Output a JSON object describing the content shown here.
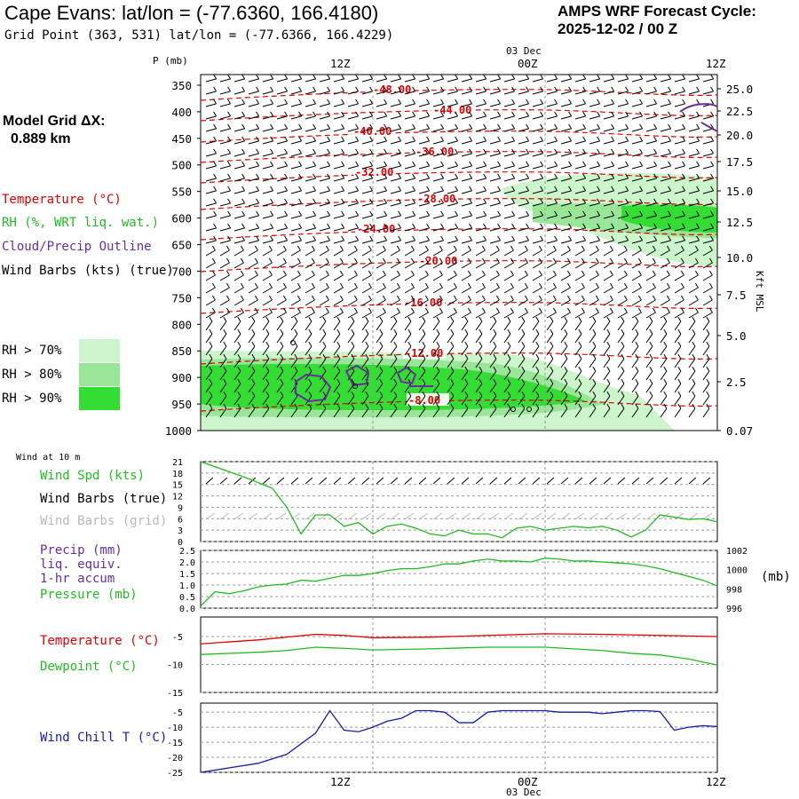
{
  "header": {
    "title": "Cape Evans:  lat/lon = (-77.6360, 166.4180)",
    "subtitle": "Grid Point (363, 531) lat/lon = (-77.6366, 166.4229)",
    "cycle_line1": "AMPS WRF Forecast Cycle:",
    "cycle_line2": "2025-12-02 / 00  Z"
  },
  "model_grid": {
    "label": "Model Grid ΔX:",
    "value": "0.889 km"
  },
  "legend": {
    "temperature": "Temperature (°C)",
    "rh": "RH (%, WRT liq. wat.)",
    "cloud": "Cloud/Precip Outline",
    "wind": "Wind Barbs (kts) (true)",
    "rh70": "RH > 70%",
    "rh80": "RH > 80%",
    "rh90": "RH > 90%"
  },
  "colors": {
    "temp": "#e00000",
    "rh": "#22bb22",
    "cloud": "#6a2d9c",
    "wind": "#000000",
    "rh70": "#ccf5cc",
    "rh80": "#99e699",
    "rh90": "#33dd33",
    "grid_barbs": "#b8b8b8",
    "chill": "#1a1aaa",
    "gridline": "#999999"
  },
  "time_axis": {
    "ticks": [
      "12Z",
      "00Z",
      "12Z"
    ],
    "date_top": "03 Dec",
    "date_bottom": "03 Dec"
  },
  "upper_panel": {
    "pressure_title": "P (mb)",
    "pressure_ticks": [
      "350",
      "400",
      "450",
      "500",
      "550",
      "600",
      "650",
      "700",
      "750",
      "800",
      "850",
      "900",
      "950",
      "1000"
    ],
    "height_ticks": [
      "25.0",
      "22.5",
      "20.0",
      "17.5",
      "15.0",
      "12.5",
      "10.0",
      "7.5",
      "5.0",
      "2.5",
      "0.07"
    ],
    "height_title": "Kft MSL",
    "temp_contour_labels": [
      "-48.00",
      "-44.00",
      "-40.00",
      "-36.00",
      "-32.00",
      "-28.00",
      "-24.00",
      "-20.00",
      "-16.00",
      "-12.00",
      "-8.00"
    ]
  },
  "wind_panel": {
    "title": "Wind at 10 m",
    "speed_label": "Wind Spd (kts)",
    "barbs_true_label": "Wind Barbs (true)",
    "barbs_grid_label": "Wind Barbs (grid)",
    "y_ticks": [
      "21",
      "18",
      "15",
      "12",
      "9",
      "6",
      "3",
      "0"
    ]
  },
  "precip_panel": {
    "precip_label": "Precip (mm)",
    "liq_label": "liq. equiv.",
    "accum_label": "1-hr accum",
    "pressure_label": "Pressure (mb)",
    "left_ticks": [
      "2.5",
      "2.0",
      "1.5",
      "1.0",
      "0.5",
      "0.0"
    ],
    "right_ticks": [
      "1002",
      "1000",
      "998",
      "996"
    ],
    "right_unit": "(mb)"
  },
  "temp_panel": {
    "temp_label": "Temperature (°C)",
    "dew_label": "Dewpoint (°C)",
    "y_ticks": [
      "-5",
      "-10",
      "-15"
    ]
  },
  "chill_panel": {
    "label": "Wind Chill T (°C)",
    "y_ticks": [
      "-5",
      "-10",
      "-15",
      "-20",
      "-25"
    ]
  },
  "chart_data": {
    "type": "line",
    "x_hours": [
      0,
      1,
      2,
      3,
      4,
      5,
      6,
      7,
      8,
      9,
      10,
      11,
      12,
      13,
      14,
      15,
      16,
      17,
      18,
      19,
      20,
      21,
      22,
      23,
      24,
      25,
      26,
      27,
      28,
      29,
      30,
      31,
      32,
      33,
      34,
      35,
      36
    ],
    "wind_speed_kts": {
      "x": [
        0,
        3,
        5,
        6,
        7,
        8,
        9,
        10,
        11,
        12,
        13,
        14,
        15,
        16,
        17,
        18,
        19,
        20,
        21,
        22,
        23,
        24,
        25,
        26,
        27,
        28,
        29,
        30,
        31,
        32,
        33,
        34,
        35,
        36
      ],
      "values": [
        21,
        17,
        14,
        9,
        2,
        7,
        7,
        4,
        5,
        2,
        4,
        4.6,
        3.5,
        2,
        1.5,
        3,
        2,
        2,
        1,
        3.5,
        4,
        3,
        3.5,
        4,
        3.6,
        4,
        3,
        1.2,
        3,
        7,
        6.4,
        5.8,
        6,
        5.2
      ],
      "ylim": [
        0,
        21
      ]
    },
    "pressure_mb": {
      "x": [
        0,
        1,
        2,
        3,
        4,
        5,
        6,
        7,
        8,
        9,
        10,
        11,
        12,
        13,
        14,
        15,
        16,
        17,
        18,
        19,
        20,
        21,
        22,
        23,
        24,
        25,
        26,
        27,
        28,
        29,
        30,
        31,
        32,
        33,
        34,
        35,
        36
      ],
      "values": [
        996.2,
        997.7,
        997.5,
        997.8,
        998.2,
        998.4,
        998.5,
        998.9,
        998.8,
        999.1,
        999.4,
        999.4,
        999.6,
        999.9,
        1000.1,
        1000.1,
        1000.3,
        1000.6,
        1000.6,
        1000.9,
        1001.1,
        1000.9,
        1000.9,
        1000.8,
        1001.2,
        1001.1,
        1000.9,
        1000.9,
        1000.8,
        1000.7,
        1000.6,
        1000.4,
        1000.1,
        999.7,
        999.3,
        998.9,
        998.3
      ],
      "ylim": [
        996,
        1002
      ]
    },
    "precip_mm": {
      "values": [
        0
      ],
      "ylim": [
        0,
        2.5
      ]
    },
    "temperature_c": {
      "x": [
        0,
        4,
        8,
        10,
        12,
        16,
        20,
        24,
        28,
        32,
        36
      ],
      "values": [
        -6.3,
        -5.6,
        -4.6,
        -4.8,
        -5.2,
        -5.1,
        -4.8,
        -4.5,
        -4.6,
        -4.8,
        -5.0
      ],
      "ylim": [
        -15,
        -1.5
      ]
    },
    "dewpoint_c": {
      "x": [
        0,
        4,
        6,
        8,
        10,
        12,
        16,
        20,
        24,
        28,
        30,
        32,
        34,
        36
      ],
      "values": [
        -8.2,
        -7.8,
        -7.5,
        -6.9,
        -7.1,
        -7.4,
        -7.2,
        -6.9,
        -6.9,
        -7.5,
        -8.0,
        -8.3,
        -9.0,
        -10.1
      ],
      "ylim": [
        -15,
        -1.5
      ]
    },
    "wind_chill_c": {
      "x": [
        0,
        2,
        4,
        6,
        8,
        9,
        10,
        11,
        12,
        13,
        14,
        15,
        16,
        17,
        18,
        19,
        20,
        21,
        22,
        23,
        24,
        25,
        26,
        27,
        28,
        29,
        30,
        31,
        32,
        33,
        34,
        35,
        36
      ],
      "values": [
        -25,
        -23.5,
        -22,
        -19,
        -12,
        -4.5,
        -11,
        -11.5,
        -10,
        -8,
        -7,
        -4.5,
        -4.5,
        -5,
        -8.5,
        -8.5,
        -5,
        -4.5,
        -4.5,
        -4.5,
        -4.5,
        -5,
        -5,
        -5,
        -5.5,
        -5,
        -4.5,
        -4.5,
        -4.8,
        -11,
        -10,
        -9.5,
        -9.8
      ],
      "ylim": [
        -25,
        -2
      ]
    }
  }
}
